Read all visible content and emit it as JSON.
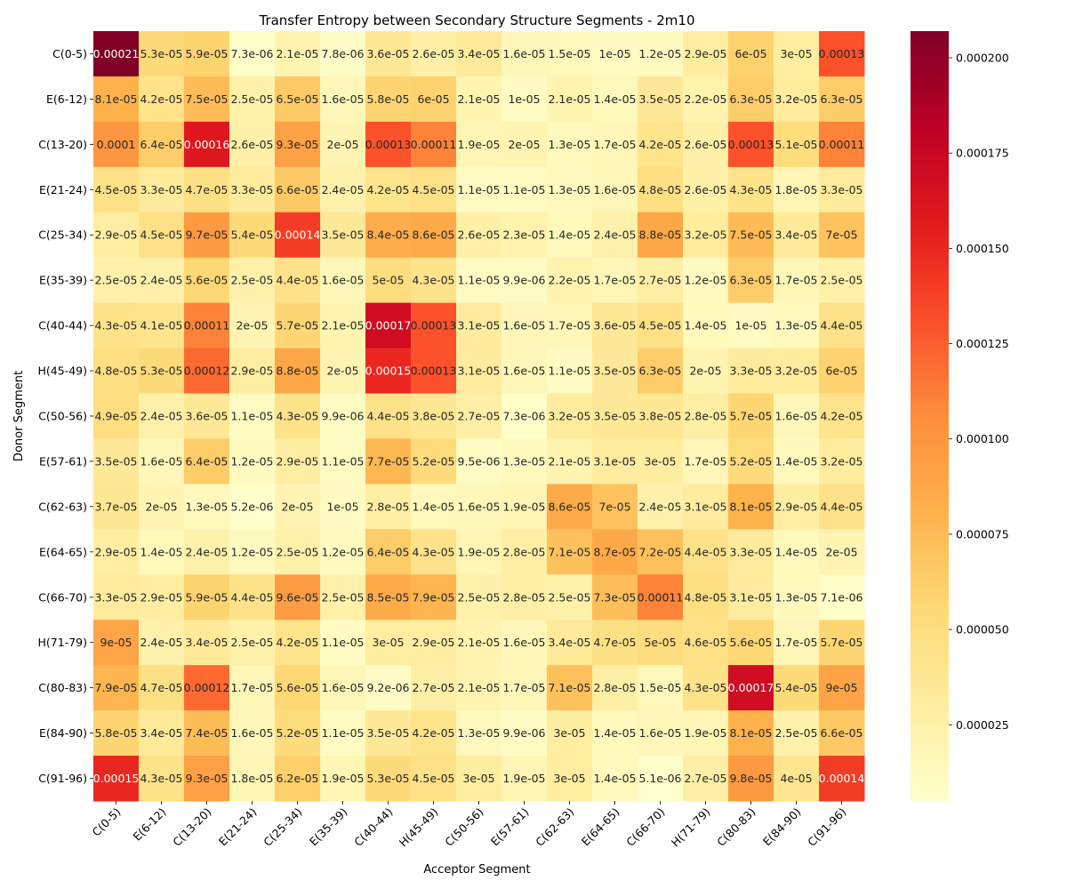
{
  "chart_data": {
    "type": "heatmap",
    "title": "Transfer Entropy between Secondary Structure Segments - 2m10",
    "xlabel": "Acceptor Segment",
    "ylabel": "Donor Segment",
    "colormap": "YlOrRd",
    "vmin": 5e-06,
    "vmax": 0.000207,
    "colorbar_ticks": [
      "0.000025",
      "0.000050",
      "0.000075",
      "0.000100",
      "0.000125",
      "0.000150",
      "0.000175",
      "0.000200"
    ],
    "colorbar_tick_values": [
      2.5e-05,
      5e-05,
      7.5e-05,
      0.0001,
      0.000125,
      0.00015,
      0.000175,
      0.0002
    ],
    "rows": [
      "C(0-5)",
      "E(6-12)",
      "C(13-20)",
      "E(21-24)",
      "C(25-34)",
      "E(35-39)",
      "C(40-44)",
      "H(45-49)",
      "C(50-56)",
      "E(57-61)",
      "C(62-63)",
      "E(64-65)",
      "C(66-70)",
      "H(71-79)",
      "C(80-83)",
      "E(84-90)",
      "C(91-96)"
    ],
    "columns": [
      "C(0-5)",
      "E(6-12)",
      "C(13-20)",
      "E(21-24)",
      "C(25-34)",
      "E(35-39)",
      "C(40-44)",
      "H(45-49)",
      "C(50-56)",
      "E(57-61)",
      "C(62-63)",
      "E(64-65)",
      "C(66-70)",
      "H(71-79)",
      "C(80-83)",
      "E(84-90)",
      "C(91-96)"
    ],
    "labels": [
      [
        "0.00021",
        "5.3e-05",
        "5.9e-05",
        "7.3e-06",
        "2.1e-05",
        "7.8e-06",
        "3.6e-05",
        "2.6e-05",
        "3.4e-05",
        "1.6e-05",
        "1.5e-05",
        "1e-05",
        "1.2e-05",
        "2.9e-05",
        "6e-05",
        "3e-05",
        "0.00013"
      ],
      [
        "8.1e-05",
        "4.2e-05",
        "7.5e-05",
        "2.5e-05",
        "6.5e-05",
        "1.6e-05",
        "5.8e-05",
        "6e-05",
        "2.1e-05",
        "1e-05",
        "2.1e-05",
        "1.4e-05",
        "3.5e-05",
        "2.2e-05",
        "6.3e-05",
        "3.2e-05",
        "6.3e-05"
      ],
      [
        "0.0001",
        "6.4e-05",
        "0.00016",
        "2.6e-05",
        "9.3e-05",
        "2e-05",
        "0.00013",
        "0.00011",
        "1.9e-05",
        "2e-05",
        "1.3e-05",
        "1.7e-05",
        "4.2e-05",
        "2.6e-05",
        "0.00013",
        "5.1e-05",
        "0.00011"
      ],
      [
        "4.5e-05",
        "3.3e-05",
        "4.7e-05",
        "3.3e-05",
        "6.6e-05",
        "2.4e-05",
        "4.2e-05",
        "4.5e-05",
        "1.1e-05",
        "1.1e-05",
        "1.3e-05",
        "1.6e-05",
        "4.8e-05",
        "2.6e-05",
        "4.3e-05",
        "1.8e-05",
        "3.3e-05"
      ],
      [
        "2.9e-05",
        "4.5e-05",
        "9.7e-05",
        "5.4e-05",
        "0.00014",
        "3.5e-05",
        "8.4e-05",
        "8.6e-05",
        "2.6e-05",
        "2.3e-05",
        "1.4e-05",
        "2.4e-05",
        "8.8e-05",
        "3.2e-05",
        "7.5e-05",
        "3.4e-05",
        "7e-05"
      ],
      [
        "2.5e-05",
        "2.4e-05",
        "5.6e-05",
        "2.5e-05",
        "4.4e-05",
        "1.6e-05",
        "5e-05",
        "4.3e-05",
        "1.1e-05",
        "9.9e-06",
        "2.2e-05",
        "1.7e-05",
        "2.7e-05",
        "1.2e-05",
        "6.3e-05",
        "1.7e-05",
        "2.5e-05"
      ],
      [
        "4.3e-05",
        "4.1e-05",
        "0.00011",
        "2e-05",
        "5.7e-05",
        "2.1e-05",
        "0.00017",
        "0.00013",
        "3.1e-05",
        "1.6e-05",
        "1.7e-05",
        "3.6e-05",
        "4.5e-05",
        "1.4e-05",
        "1e-05",
        "1.3e-05",
        "4.4e-05"
      ],
      [
        "4.8e-05",
        "5.3e-05",
        "0.00012",
        "2.9e-05",
        "8.8e-05",
        "2e-05",
        "0.00015",
        "0.00013",
        "3.1e-05",
        "1.6e-05",
        "1.1e-05",
        "3.5e-05",
        "6.3e-05",
        "2e-05",
        "3.3e-05",
        "3.2e-05",
        "6e-05"
      ],
      [
        "4.9e-05",
        "2.4e-05",
        "3.6e-05",
        "1.1e-05",
        "4.3e-05",
        "9.9e-06",
        "4.4e-05",
        "3.8e-05",
        "2.7e-05",
        "7.3e-06",
        "3.2e-05",
        "3.5e-05",
        "3.8e-05",
        "2.8e-05",
        "5.7e-05",
        "1.6e-05",
        "4.2e-05"
      ],
      [
        "3.5e-05",
        "1.6e-05",
        "6.4e-05",
        "1.2e-05",
        "2.9e-05",
        "1.1e-05",
        "7.7e-05",
        "5.2e-05",
        "9.5e-06",
        "1.3e-05",
        "2.1e-05",
        "3.1e-05",
        "3e-05",
        "1.7e-05",
        "5.2e-05",
        "1.4e-05",
        "3.2e-05"
      ],
      [
        "3.7e-05",
        "2e-05",
        "1.3e-05",
        "5.2e-06",
        "2e-05",
        "1e-05",
        "2.8e-05",
        "1.4e-05",
        "1.6e-05",
        "1.9e-05",
        "8.6e-05",
        "7e-05",
        "2.4e-05",
        "3.1e-05",
        "8.1e-05",
        "2.9e-05",
        "4.4e-05"
      ],
      [
        "2.9e-05",
        "1.4e-05",
        "2.4e-05",
        "1.2e-05",
        "2.5e-05",
        "1.2e-05",
        "6.4e-05",
        "4.3e-05",
        "1.9e-05",
        "2.8e-05",
        "7.1e-05",
        "8.7e-05",
        "7.2e-05",
        "4.4e-05",
        "3.3e-05",
        "1.4e-05",
        "2e-05"
      ],
      [
        "3.3e-05",
        "2.9e-05",
        "5.9e-05",
        "4.4e-05",
        "9.6e-05",
        "2.5e-05",
        "8.5e-05",
        "7.9e-05",
        "2.5e-05",
        "2.8e-05",
        "2.5e-05",
        "7.3e-05",
        "0.00011",
        "4.8e-05",
        "3.1e-05",
        "1.3e-05",
        "7.1e-06"
      ],
      [
        "9e-05",
        "2.4e-05",
        "3.4e-05",
        "2.5e-05",
        "4.2e-05",
        "1.1e-05",
        "3e-05",
        "2.9e-05",
        "2.1e-05",
        "1.6e-05",
        "3.4e-05",
        "4.7e-05",
        "5e-05",
        "4.6e-05",
        "5.6e-05",
        "1.7e-05",
        "5.7e-05"
      ],
      [
        "7.9e-05",
        "4.7e-05",
        "0.00012",
        "1.7e-05",
        "5.6e-05",
        "1.6e-05",
        "9.2e-06",
        "2.7e-05",
        "2.1e-05",
        "1.7e-05",
        "7.1e-05",
        "2.8e-05",
        "1.5e-05",
        "4.3e-05",
        "0.00017",
        "5.4e-05",
        "9e-05"
      ],
      [
        "5.8e-05",
        "3.4e-05",
        "7.4e-05",
        "1.6e-05",
        "5.2e-05",
        "1.1e-05",
        "3.5e-05",
        "4.2e-05",
        "1.3e-05",
        "9.9e-06",
        "3e-05",
        "1.4e-05",
        "1.6e-05",
        "1.9e-05",
        "8.1e-05",
        "2.5e-05",
        "6.6e-05"
      ],
      [
        "0.00015",
        "4.3e-05",
        "9.3e-05",
        "1.8e-05",
        "6.2e-05",
        "1.9e-05",
        "5.3e-05",
        "4.5e-05",
        "3e-05",
        "1.9e-05",
        "3e-05",
        "1.4e-05",
        "5.1e-06",
        "2.7e-05",
        "9.8e-05",
        "4e-05",
        "0.00014"
      ]
    ]
  }
}
